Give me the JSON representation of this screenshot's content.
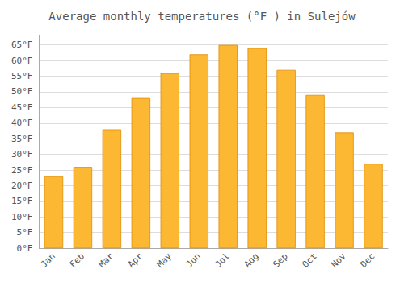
{
  "chart_data": {
    "type": "bar",
    "title": "Average monthly temperatures (°F ) in Sulejów",
    "categories": [
      "Jan",
      "Feb",
      "Mar",
      "Apr",
      "May",
      "Jun",
      "Jul",
      "Aug",
      "Sep",
      "Oct",
      "Nov",
      "Dec"
    ],
    "values": [
      23,
      26,
      38,
      48,
      56,
      62,
      65,
      64,
      57,
      49,
      37,
      27
    ],
    "color": "#FDB833",
    "ylim": [
      0,
      68
    ],
    "yticks": [
      {
        "value": 0,
        "label": "0°F"
      },
      {
        "value": 5,
        "label": "5°F"
      },
      {
        "value": 10,
        "label": "10°F"
      },
      {
        "value": 15,
        "label": "15°F"
      },
      {
        "value": 20,
        "label": "20°F"
      },
      {
        "value": 25,
        "label": "25°F"
      },
      {
        "value": 30,
        "label": "30°F"
      },
      {
        "value": 35,
        "label": "35°F"
      },
      {
        "value": 40,
        "label": "40°F"
      },
      {
        "value": 45,
        "label": "45°F"
      },
      {
        "value": 50,
        "label": "50°F"
      },
      {
        "value": 55,
        "label": "55°F"
      },
      {
        "value": 60,
        "label": "60°F"
      },
      {
        "value": 65,
        "label": "65°F"
      }
    ],
    "grid": true
  }
}
